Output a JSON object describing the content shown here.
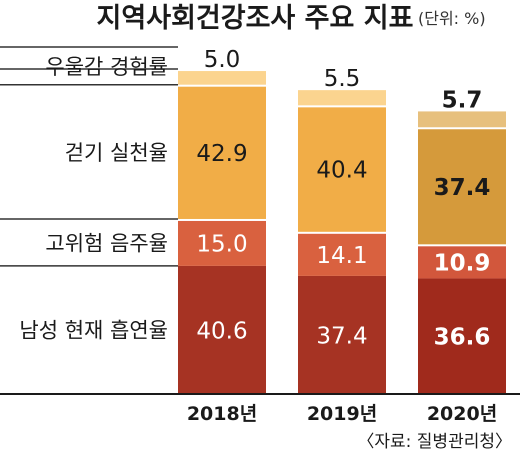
{
  "chart_data": {
    "type": "bar",
    "stacked": true,
    "title": "지역사회건강조사 주요 지표",
    "unit": "(단위: %)",
    "source": "〈자료: 질병관리청〉",
    "categories": [
      "2018년",
      "2019년",
      "2020년"
    ],
    "highlight_category": "2020년",
    "series": [
      {
        "name": "남성 현재 흡연율",
        "values": [
          40.6,
          37.4,
          36.6
        ],
        "colors": [
          "#a63323",
          "#a63323",
          "#a02a1c"
        ]
      },
      {
        "name": "고위험 음주율",
        "values": [
          15.0,
          14.1,
          10.9
        ],
        "colors": [
          "#d9613f",
          "#d9613f",
          "#d2573c"
        ]
      },
      {
        "name": "걷기 실천율",
        "values": [
          42.9,
          40.4,
          37.4
        ],
        "colors": [
          "#f1ad47",
          "#f1ad47",
          "#d59a3b"
        ]
      },
      {
        "name": "우울감 경험률",
        "values": [
          5.0,
          5.5,
          5.7
        ],
        "colors": [
          "#fbd48f",
          "#fbd48f",
          "#e7c07d"
        ]
      }
    ],
    "ylim": [
      0,
      105
    ],
    "grid": false,
    "legend": "left"
  }
}
